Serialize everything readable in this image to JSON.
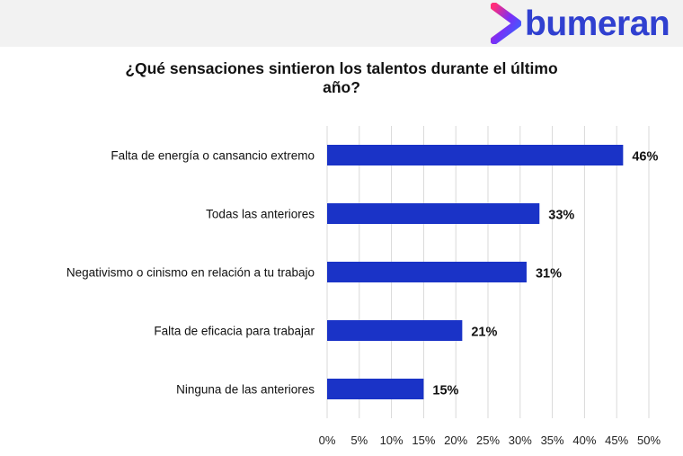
{
  "brand": {
    "name": "bumeran",
    "color": "#3040d0",
    "mark_colors": [
      "#ff2d7a",
      "#7b2ff7",
      "#2c6bff"
    ]
  },
  "colors": {
    "bar": "#1a33c7",
    "grid": "#d9d9d9",
    "topbar": "#f2f2f2"
  },
  "chart_data": {
    "type": "bar",
    "orientation": "horizontal",
    "title": "¿Qué sensaciones sintieron los talentos durante el último año?",
    "title_lines": [
      "¿Qué sensaciones sintieron los talentos durante el último",
      "año?"
    ],
    "categories": [
      "Falta de energía o cansancio extremo",
      "Todas las anteriores",
      "Negativismo o cinismo en relación a tu trabajo",
      "Falta de eficacia para trabajar",
      "Ninguna de las anteriores"
    ],
    "values": [
      46,
      33,
      31,
      21,
      15
    ],
    "value_labels": [
      "46%",
      "33%",
      "31%",
      "21%",
      "15%"
    ],
    "xlim": [
      0,
      50
    ],
    "xticks": [
      0,
      5,
      10,
      15,
      20,
      25,
      30,
      35,
      40,
      45,
      50
    ],
    "xtick_labels": [
      "0%",
      "5%",
      "10%",
      "15%",
      "20%",
      "25%",
      "30%",
      "35%",
      "40%",
      "45%",
      "50%"
    ],
    "xlabel": "",
    "ylabel": "",
    "grid": true,
    "legend": "none"
  }
}
